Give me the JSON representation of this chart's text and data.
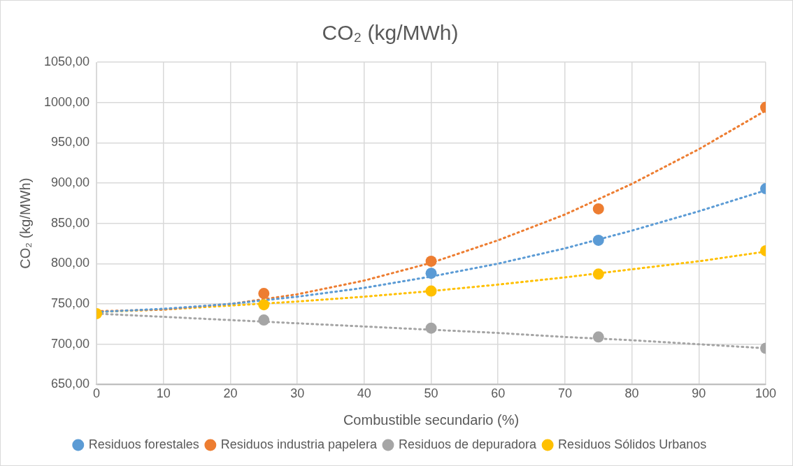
{
  "chart_data": {
    "type": "scatter",
    "title": "CO₂ (kg/MWh)",
    "xlabel": "Combustible secundario (%)",
    "ylabel": "CO₂ (kg/MWh)",
    "x": [
      0,
      25,
      50,
      75,
      100
    ],
    "series": [
      {
        "name": "Residuos forestales",
        "color": "#5b9bd5",
        "values": [
          null,
          null,
          788,
          829,
          893
        ]
      },
      {
        "name": "Residuos industria papelera",
        "color": "#ed7d31",
        "values": [
          null,
          763,
          803,
          868,
          994
        ]
      },
      {
        "name": "Residuos de depuradora",
        "color": "#a5a5a5",
        "values": [
          null,
          730,
          720,
          709,
          695
        ]
      },
      {
        "name": "Residuos Sólidos Urbanos",
        "color": "#ffc000",
        "values": [
          738,
          749,
          766,
          787,
          816
        ]
      },
      {
        "type": "line",
        "color": "#5b9bd5",
        "line_style": "dotted",
        "marker": "none",
        "x": [
          0,
          10,
          20,
          30,
          40,
          50,
          60,
          70,
          80,
          90,
          100
        ],
        "values": [
          740,
          744,
          750,
          759,
          770,
          784,
          800,
          819,
          841,
          865,
          891
        ]
      },
      {
        "type": "line",
        "color": "#ed7d31",
        "line_style": "dotted",
        "marker": "none",
        "x": [
          0,
          10,
          20,
          30,
          40,
          50,
          60,
          70,
          80,
          90,
          100
        ],
        "values": [
          741,
          743,
          750,
          762,
          779,
          801,
          829,
          861,
          899,
          942,
          990
        ]
      },
      {
        "type": "line",
        "color": "#a5a5a5",
        "line_style": "dotted",
        "marker": "none",
        "x": [
          0,
          10,
          20,
          30,
          40,
          50,
          60,
          70,
          80,
          90,
          100
        ],
        "values": [
          738,
          734,
          730,
          726,
          722,
          718,
          714,
          709,
          705,
          700,
          695
        ]
      },
      {
        "type": "line",
        "color": "#ffc000",
        "line_style": "dotted",
        "marker": "none",
        "x": [
          0,
          10,
          20,
          30,
          40,
          50,
          60,
          70,
          80,
          90,
          100
        ],
        "values": [
          740,
          743,
          748,
          753,
          759,
          766,
          774,
          783,
          793,
          803,
          815
        ]
      }
    ],
    "xlim": [
      0,
      100
    ],
    "xticks": [
      0,
      10,
      20,
      30,
      40,
      50,
      60,
      70,
      80,
      90,
      100
    ],
    "ylim": [
      650,
      1050
    ],
    "yticks": [
      {
        "value": 650,
        "label": "650,00"
      },
      {
        "value": 700,
        "label": "700,00"
      },
      {
        "value": 750,
        "label": "750,00"
      },
      {
        "value": 800,
        "label": "800,00"
      },
      {
        "value": 850,
        "label": "850,00"
      },
      {
        "value": 900,
        "label": "900,00"
      },
      {
        "value": 950,
        "label": "950,00"
      },
      {
        "value": 1000,
        "label": "1000,00"
      },
      {
        "value": 1050,
        "label": "1050,00"
      }
    ],
    "grid": true,
    "legend": "bottom",
    "marker": "circle"
  }
}
